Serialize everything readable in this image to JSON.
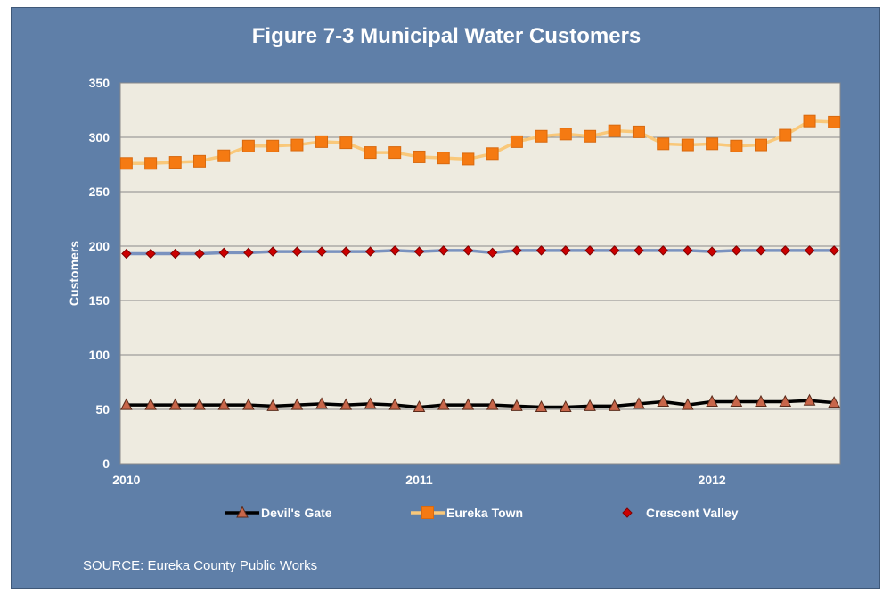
{
  "chart_data": {
    "type": "line",
    "title": "Figure 7-3 Municipal Water Customers",
    "ylabel": "Customers",
    "xlabel": "",
    "ylim": [
      0,
      350
    ],
    "yticks": [
      0,
      50,
      100,
      150,
      200,
      250,
      300,
      350
    ],
    "xtick_labels": [
      {
        "label": "2010",
        "x": 2010.0
      },
      {
        "label": "2011",
        "x": 2011.0
      },
      {
        "label": "2012",
        "x": 2012.0
      }
    ],
    "grid": "horizontal",
    "legend_position": "bottom",
    "x": [
      2010.0,
      2010.083,
      2010.167,
      2010.25,
      2010.333,
      2010.417,
      2010.5,
      2010.583,
      2010.667,
      2010.75,
      2010.833,
      2010.917,
      2011.0,
      2011.083,
      2011.167,
      2011.25,
      2011.333,
      2011.417,
      2011.5,
      2011.583,
      2011.667,
      2011.75,
      2011.833,
      2011.917,
      2012.0,
      2012.083,
      2012.167,
      2012.25,
      2012.333,
      2012.417
    ],
    "series": [
      {
        "name": "Devil's Gate",
        "color": "#000000",
        "marker": "triangle",
        "marker_color": "#c8664a",
        "values": [
          54,
          54,
          54,
          54,
          54,
          54,
          53,
          54,
          55,
          54,
          55,
          54,
          52,
          54,
          54,
          54,
          53,
          52,
          52,
          53,
          53,
          55,
          57,
          54,
          57,
          57,
          57,
          57,
          58,
          56
        ]
      },
      {
        "name": "Eureka Town",
        "color": "#f9c87a",
        "marker": "square",
        "marker_color": "#f57a12",
        "values": [
          276,
          276,
          277,
          278,
          283,
          292,
          292,
          293,
          296,
          295,
          286,
          286,
          282,
          281,
          280,
          285,
          296,
          301,
          303,
          301,
          306,
          305,
          294,
          293,
          294,
          292,
          293,
          302,
          315,
          314
        ]
      },
      {
        "name": "Crescent Valley",
        "color": "#7a92bf",
        "marker": "diamond",
        "marker_color": "#cc0000",
        "values": [
          193,
          193,
          193,
          193,
          194,
          194,
          195,
          195,
          195,
          195,
          195,
          196,
          195,
          196,
          196,
          194,
          196,
          196,
          196,
          196,
          196,
          196,
          196,
          196,
          195,
          196,
          196,
          196,
          196,
          196
        ]
      }
    ]
  },
  "source": "SOURCE: Eureka County Public Works"
}
